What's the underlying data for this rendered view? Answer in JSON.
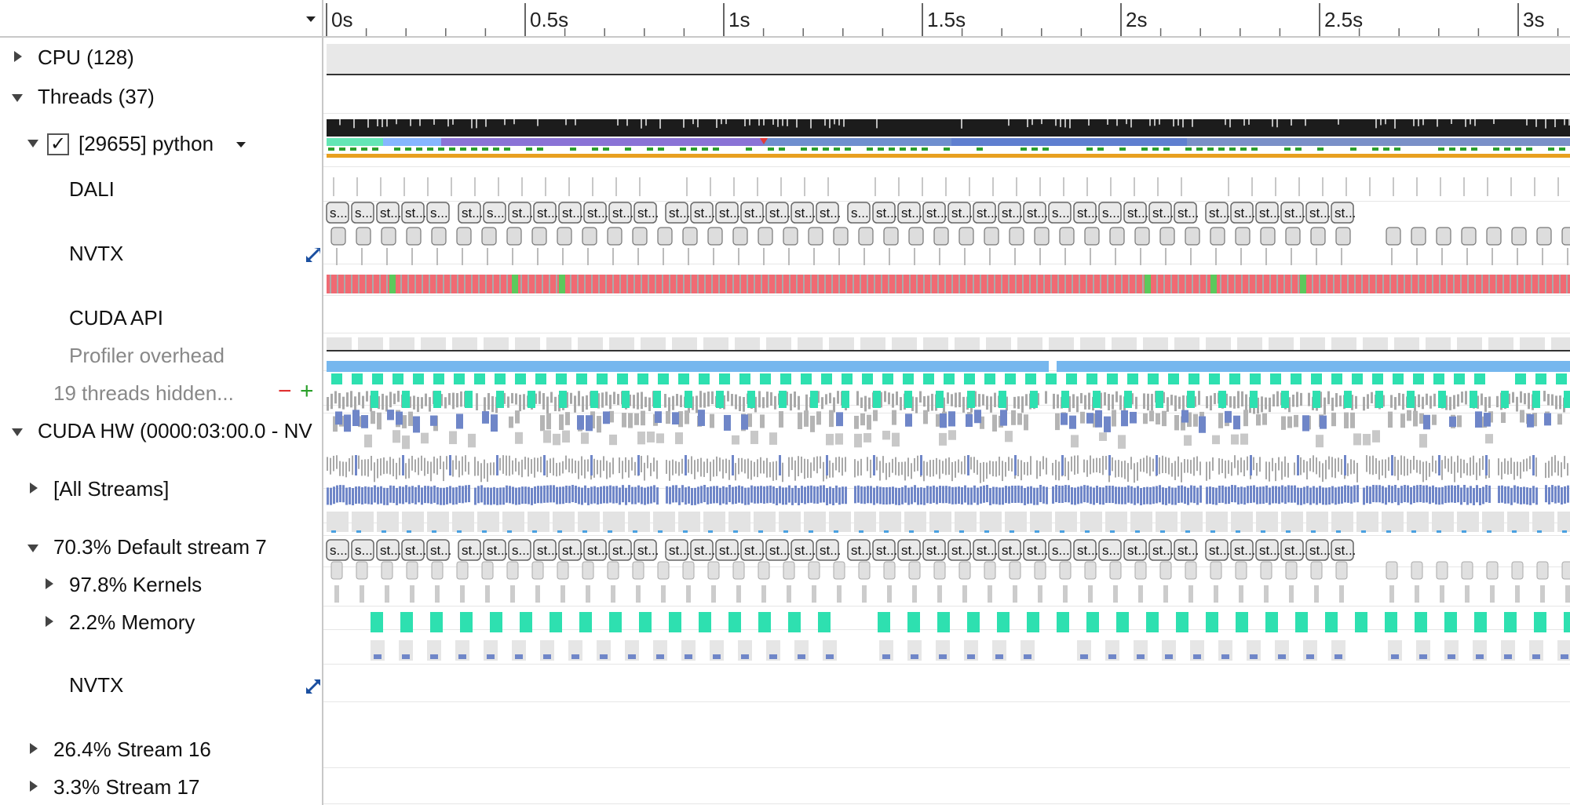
{
  "header": {
    "dropdown_icon": "caret-down-icon"
  },
  "ruler": {
    "ticks": [
      {
        "label": "0s",
        "seconds": 0
      },
      {
        "label": "0.5s",
        "seconds": 0.5
      },
      {
        "label": "1s",
        "seconds": 1
      },
      {
        "label": "1.5s",
        "seconds": 1.5
      },
      {
        "label": "2s",
        "seconds": 2
      },
      {
        "label": "2.5s",
        "seconds": 2.5
      },
      {
        "label": "3s",
        "seconds": 3
      }
    ]
  },
  "rows": {
    "cpu": {
      "label": "CPU (128)",
      "expanded": false
    },
    "threads": {
      "label": "Threads (37)",
      "expanded": true
    },
    "python": {
      "label": "[29655] python",
      "checked": true,
      "check_glyph": "✓"
    },
    "dali": {
      "label": "DALI"
    },
    "nvtx1": {
      "label": "NVTX"
    },
    "cuda_api": {
      "label": "CUDA API"
    },
    "profiler": {
      "label": "Profiler overhead"
    },
    "hidden": {
      "label": "19 threads hidden...",
      "minus": "−",
      "plus": "+"
    },
    "cuda_hw": {
      "label": "CUDA HW (0000:03:00.0 - NV"
    },
    "all_streams": {
      "label": "[All Streams]"
    },
    "default_stream": {
      "label": "70.3% Default stream 7"
    },
    "kernels": {
      "label": "97.8% Kernels"
    },
    "memory": {
      "label": "2.2% Memory"
    },
    "nvtx2": {
      "label": "NVTX"
    },
    "stream16": {
      "label": "26.4% Stream 16"
    },
    "stream17": {
      "label": "3.3% Stream 17"
    }
  },
  "nvtx_range_labels": {
    "threads_nvtx": [
      "s...",
      "s...",
      "st...",
      "st...",
      "s...",
      "st...",
      "s...",
      "st...",
      "st...",
      "st...",
      "st...",
      "st...",
      "st...",
      "st...",
      "st...",
      "st...",
      "st...",
      "st...",
      "st...",
      "st...",
      "s...",
      "st...",
      "st...",
      "st...",
      "st...",
      "st...",
      "st...",
      "st...",
      "s...",
      "st...",
      "s...",
      "st...",
      "st...",
      "st...",
      "st...",
      "st...",
      "st...",
      "st...",
      "st...",
      "st..."
    ],
    "stream_nvtx": [
      "s...",
      "s...",
      "st...",
      "st...",
      "st...",
      "st...",
      "st...",
      "s...",
      "st...",
      "st...",
      "st...",
      "st...",
      "st...",
      "st...",
      "st...",
      "st...",
      "st...",
      "st...",
      "st...",
      "st...",
      "st...",
      "st...",
      "st...",
      "st...",
      "st...",
      "st...",
      "st...",
      "st...",
      "s...",
      "st...",
      "s...",
      "st...",
      "st...",
      "st...",
      "st...",
      "st...",
      "st...",
      "st...",
      "st...",
      "st..."
    ],
    "nvtx_inner_label": "..."
  },
  "colors": {
    "cuda_api": "#f06a73",
    "cuda_api_green": "#5cc95c",
    "kernel_blue": "#6f86c8",
    "stream16_teal": "#2ee0b0",
    "hw_blue": "#76b7ee",
    "thread_black": "#1c1c1c",
    "memory_gray": "#e3e3e3"
  }
}
